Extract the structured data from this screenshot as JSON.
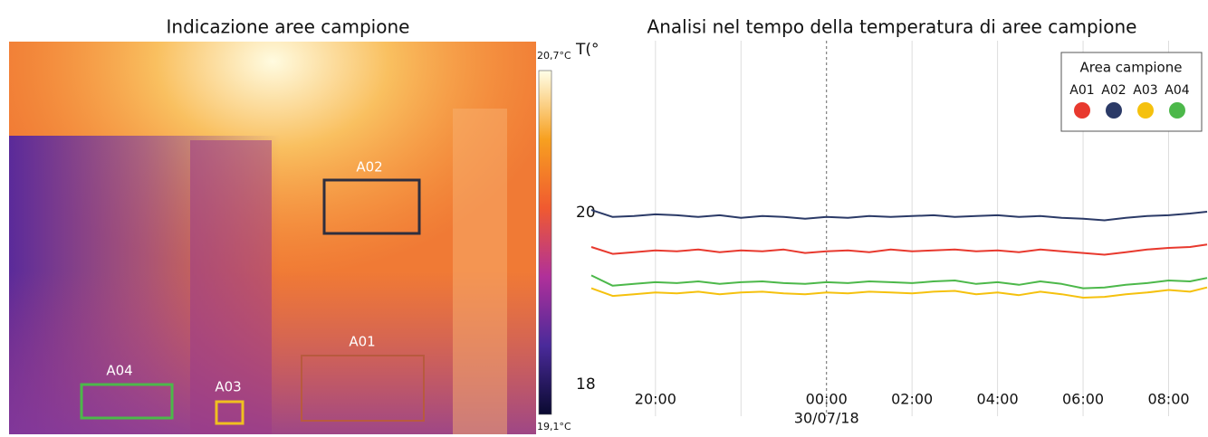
{
  "thermal_image": {
    "title": "Indicazione aree campione",
    "colorbar": {
      "max_label": "20,7°C",
      "min_label": "19,1°C"
    },
    "areas": [
      {
        "label": "A01",
        "color": "#b85a3e"
      },
      {
        "label": "A02",
        "color": "#2e2e3e"
      },
      {
        "label": "A03",
        "color": "#f0c020"
      },
      {
        "label": "A04",
        "color": "#4cb84a"
      }
    ]
  },
  "chart_data": {
    "type": "line",
    "title": "Analisi nel tempo della temperatura di aree campione",
    "y_label": "T(°C)",
    "legend_title": "Area campione",
    "legend": "top-right",
    "x": [
      -5.5,
      -5,
      -4.5,
      -4,
      -3.5,
      -3,
      -2.5,
      -2,
      -1.5,
      -1,
      -0.5,
      0,
      0.5,
      1,
      1.5,
      2,
      2.5,
      3,
      3.5,
      4,
      4.5,
      5,
      5.5,
      6,
      6.5,
      7,
      7.5,
      8,
      8.5,
      8.9
    ],
    "xlim": [
      -5.5,
      8.9
    ],
    "xticks": [
      {
        "value": -4,
        "label": "20:00"
      },
      {
        "value": -2,
        "label": null
      },
      {
        "value": 0,
        "label": "00:00",
        "sublabel": "30/07/18"
      },
      {
        "value": 2,
        "label": "02:00"
      },
      {
        "value": 4,
        "label": "04:00"
      },
      {
        "value": 6,
        "label": "06:00"
      },
      {
        "value": 8,
        "label": "08:00"
      }
    ],
    "ylim": [
      18,
      22
    ],
    "yticks": [
      18,
      20
    ],
    "grid": true,
    "series": [
      {
        "name": "A01",
        "color": "#e8392e",
        "values": [
          19.6,
          19.52,
          19.54,
          19.56,
          19.55,
          19.57,
          19.54,
          19.56,
          19.55,
          19.57,
          19.53,
          19.55,
          19.56,
          19.54,
          19.57,
          19.55,
          19.56,
          19.57,
          19.55,
          19.56,
          19.54,
          19.57,
          19.55,
          19.53,
          19.51,
          19.54,
          19.57,
          19.59,
          19.6,
          19.63
        ]
      },
      {
        "name": "A02",
        "color": "#2b3a67",
        "values": [
          20.03,
          19.95,
          19.96,
          19.98,
          19.97,
          19.95,
          19.97,
          19.94,
          19.96,
          19.95,
          19.93,
          19.95,
          19.94,
          19.96,
          19.95,
          19.96,
          19.97,
          19.95,
          19.96,
          19.97,
          19.95,
          19.96,
          19.94,
          19.93,
          19.91,
          19.94,
          19.96,
          19.97,
          19.99,
          20.01
        ]
      },
      {
        "name": "A03",
        "color": "#f5c10e",
        "values": [
          19.12,
          19.03,
          19.05,
          19.07,
          19.06,
          19.08,
          19.05,
          19.07,
          19.08,
          19.06,
          19.05,
          19.07,
          19.06,
          19.08,
          19.07,
          19.06,
          19.08,
          19.09,
          19.05,
          19.07,
          19.04,
          19.08,
          19.05,
          19.01,
          19.02,
          19.05,
          19.07,
          19.1,
          19.08,
          19.13
        ]
      },
      {
        "name": "A04",
        "color": "#4cb84a",
        "values": [
          19.27,
          19.15,
          19.17,
          19.19,
          19.18,
          19.2,
          19.17,
          19.19,
          19.2,
          19.18,
          19.17,
          19.19,
          19.18,
          19.2,
          19.19,
          19.18,
          19.2,
          19.21,
          19.17,
          19.19,
          19.16,
          19.2,
          19.17,
          19.12,
          19.13,
          19.16,
          19.18,
          19.21,
          19.2,
          19.24
        ]
      }
    ]
  }
}
